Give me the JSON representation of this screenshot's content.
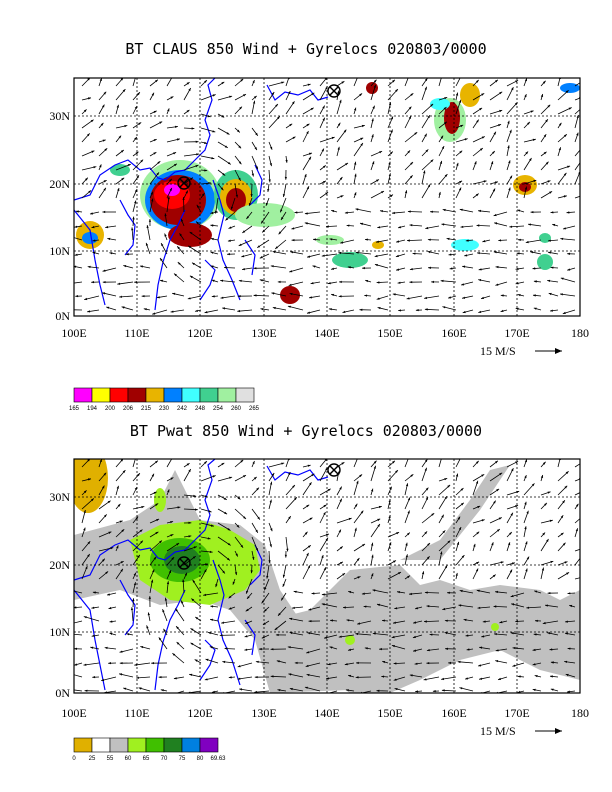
{
  "panels": [
    {
      "title": "BT CLAUS 850 Wind + Gyrelocs 020803/0000",
      "x_labels": [
        "100E",
        "110E",
        "120E",
        "130E",
        "140E",
        "150E",
        "160E",
        "170E",
        "180"
      ],
      "y_labels": [
        "0N",
        "10N",
        "20N",
        "30N"
      ],
      "scale_label": "15 M/S",
      "legend_ticks": [
        "165",
        "194",
        "200",
        "206",
        "215",
        "230",
        "242",
        "248",
        "254",
        "260",
        "265"
      ],
      "legend_colors": [
        "#ff00ff",
        "#ffff00",
        "#ff0000",
        "#a00000",
        "#e8b400",
        "#0080ff",
        "#40ffff",
        "#40d090",
        "#a0f0a0",
        "#e0e0e0"
      ],
      "gyre_locations": [
        "117E 20N",
        "141E 34N"
      ]
    },
    {
      "title": "BT Pwat 850 Wind + Gyrelocs 020803/0000",
      "x_labels": [
        "100E",
        "110E",
        "120E",
        "130E",
        "140E",
        "150E",
        "160E",
        "170E",
        "180"
      ],
      "y_labels": [
        "0N",
        "10N",
        "20N",
        "30N"
      ],
      "scale_label": "15 M/S",
      "legend_ticks": [
        "0",
        "25",
        "55",
        "60",
        "65",
        "70",
        "75",
        "80",
        "69.63"
      ],
      "legend_colors": [
        "#e0b000",
        "#ffffff",
        "#c0c0c0",
        "#a0f020",
        "#40c000",
        "#208020",
        "#0080e0",
        "#8000c0"
      ],
      "gyre_locations": [
        "117E 20N",
        "141E 34N"
      ]
    }
  ],
  "colors": {
    "coast": "#0000ff",
    "grid": "#000000"
  }
}
